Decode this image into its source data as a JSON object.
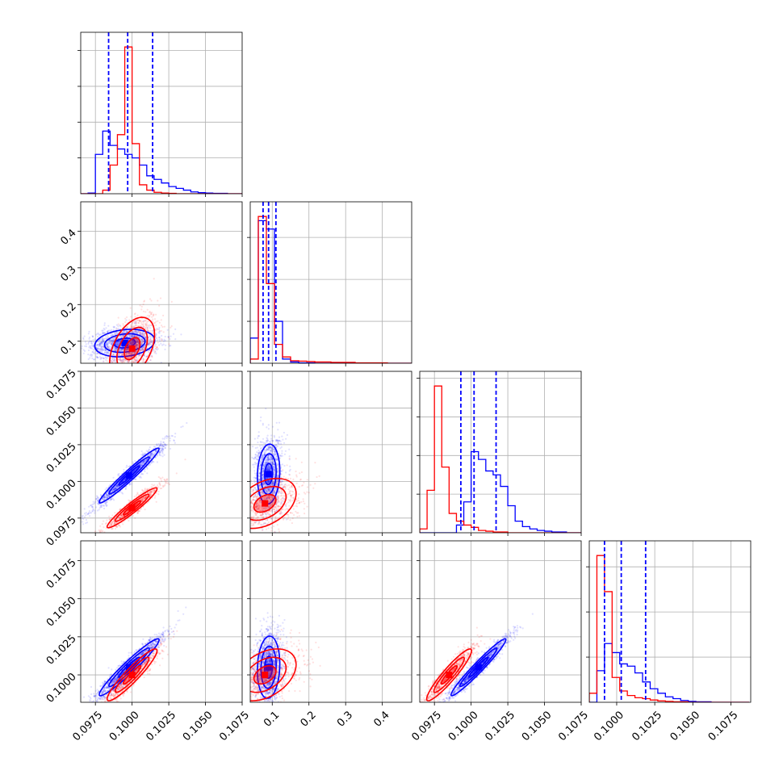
{
  "chart_data": {
    "type": "corner",
    "title": "",
    "grid": true,
    "series": [
      {
        "name": "",
        "color": "#0000ff"
      },
      {
        "name": "",
        "color": "#ff0000"
      }
    ],
    "axes": [
      {
        "range": [
          0.0965,
          0.1075
        ],
        "ticks": [
          0.0975,
          0.1,
          0.1025,
          0.105,
          0.1075
        ],
        "tick_labels": [
          "0.0975",
          "0.1000",
          "0.1025",
          "0.1050",
          "0.1075"
        ]
      },
      {
        "range": [
          0.04,
          0.48
        ],
        "ticks": [
          0.1,
          0.2,
          0.3,
          0.4
        ],
        "tick_labels": [
          "0.1",
          "0.2",
          "0.3",
          "0.4"
        ]
      },
      {
        "range": [
          0.0965,
          0.1075
        ],
        "ticks": [
          0.0975,
          0.1,
          0.1025,
          0.105,
          0.1075
        ],
        "tick_labels": [
          "0.0975",
          "0.1000",
          "0.1025",
          "0.1050",
          "0.1075"
        ]
      },
      {
        "range": [
          0.0982,
          0.1088
        ],
        "ticks": [
          0.1,
          0.1025,
          0.105,
          0.1075
        ],
        "tick_labels": [
          "0.1000",
          "0.1025",
          "0.1050",
          "0.1075"
        ]
      }
    ],
    "quantiles": [
      {
        "color": "#0000ff",
        "values": [
          0.0984,
          0.0997,
          0.1014
        ]
      },
      {
        "color": "#0000ff",
        "values": [
          0.075,
          0.09,
          0.11
        ]
      },
      {
        "color": "#0000ff",
        "values": [
          0.0993,
          0.1002,
          0.1017
        ]
      },
      {
        "color": "#0000ff",
        "values": [
          0.0992,
          0.1003,
          0.1019
        ]
      }
    ],
    "histograms": [
      {
        "bin_edges": [
          0.0965,
          0.097,
          0.0975,
          0.098,
          0.0985,
          0.099,
          0.0995,
          0.1,
          0.1005,
          0.101,
          0.1015,
          0.102,
          0.1025,
          0.103,
          0.1035,
          0.104,
          0.1045,
          0.105,
          0.1055,
          0.106,
          0.1065,
          0.107,
          0.1075
        ],
        "series": [
          {
            "color": "#0000ff",
            "counts": [
              0,
              2,
              110,
              175,
              135,
              125,
              110,
              100,
              80,
              50,
              40,
              30,
              20,
              15,
              10,
              5,
              3,
              2,
              1,
              1,
              0,
              0
            ]
          },
          {
            "color": "#ff0000",
            "counts": [
              0,
              0,
              0,
              10,
              80,
              165,
              410,
              140,
              25,
              10,
              4,
              2,
              1,
              0,
              0,
              0,
              0,
              0,
              0,
              0,
              0,
              0
            ]
          }
        ]
      },
      {
        "bin_edges": [
          0.04,
          0.062,
          0.084,
          0.106,
          0.128,
          0.15,
          0.172,
          0.194,
          0.216,
          0.238,
          0.26,
          0.282,
          0.304,
          0.326,
          0.348,
          0.37,
          0.392,
          0.414,
          0.436,
          0.458,
          0.48
        ],
        "series": [
          {
            "color": "#0000ff",
            "counts": [
              60,
              340,
              320,
              100,
              10,
              3,
              1,
              1,
              0,
              0,
              0,
              0,
              0,
              0,
              0,
              0,
              0,
              0,
              0,
              0
            ]
          },
          {
            "color": "#ff0000",
            "counts": [
              10,
              350,
              190,
              45,
              15,
              6,
              5,
              4,
              3,
              3,
              2,
              2,
              2,
              1,
              1,
              1,
              1,
              0,
              0,
              0
            ]
          }
        ]
      },
      {
        "bin_edges": [
          0.0965,
          0.097,
          0.0975,
          0.098,
          0.0985,
          0.099,
          0.0995,
          0.1,
          0.1005,
          0.101,
          0.1015,
          0.102,
          0.1025,
          0.103,
          0.1035,
          0.104,
          0.1045,
          0.105,
          0.1055,
          0.106,
          0.1065,
          0.107,
          0.1075
        ],
        "series": [
          {
            "color": "#0000ff",
            "counts": [
              0,
              0,
              0,
              0,
              0,
              10,
              40,
              105,
              95,
              80,
              75,
              60,
              35,
              15,
              8,
              5,
              3,
              2,
              1,
              1,
              0,
              0
            ]
          },
          {
            "color": "#ff0000",
            "counts": [
              5,
              55,
              190,
              85,
              25,
              15,
              10,
              7,
              3,
              2,
              1,
              1,
              0,
              0,
              0,
              0,
              0,
              0,
              0,
              0,
              0,
              0
            ]
          }
        ]
      },
      {
        "bin_edges": [
          0.0982,
          0.0987,
          0.0992,
          0.0997,
          0.1002,
          0.1007,
          0.1012,
          0.1017,
          0.1022,
          0.1027,
          0.1032,
          0.1037,
          0.1042,
          0.1047,
          0.1052,
          0.1057,
          0.1062,
          0.1067,
          0.1072,
          0.1077,
          0.1082,
          0.1087
        ],
        "series": [
          {
            "color": "#0000ff",
            "counts": [
              0,
              70,
              130,
              110,
              85,
              80,
              65,
              45,
              30,
              20,
              12,
              8,
              4,
              2,
              1,
              1,
              0,
              0,
              0,
              0,
              0
            ]
          },
          {
            "color": "#ff0000",
            "counts": [
              20,
              325,
              245,
              55,
              25,
              15,
              10,
              8,
              5,
              3,
              2,
              1,
              1,
              0,
              0,
              0,
              0,
              0,
              0,
              0,
              0
            ]
          }
        ]
      }
    ],
    "pairs": [
      {
        "x_axis": 0,
        "y_axis": 1,
        "series": [
          {
            "color": "#0000ff",
            "mean": [
              0.0995,
              0.095
            ],
            "sd": [
              0.0012,
              0.022
            ],
            "corr": 0.2,
            "n": 1400
          },
          {
            "color": "#ff0000",
            "mean": [
              0.1,
              0.08
            ],
            "sd": [
              0.0009,
              0.05
            ],
            "corr": 0.45,
            "n": 900
          }
        ]
      },
      {
        "x_axis": 0,
        "y_axis": 2,
        "series": [
          {
            "color": "#0000ff",
            "mean": [
              0.0998,
              0.1004
            ],
            "sd": [
              0.0012,
              0.0011
            ],
            "corr": 0.97,
            "n": 1400
          },
          {
            "color": "#ff0000",
            "mean": [
              0.1,
              0.0982
            ],
            "sd": [
              0.001,
              0.0008
            ],
            "corr": 0.95,
            "n": 900
          }
        ]
      },
      {
        "x_axis": 1,
        "y_axis": 2,
        "series": [
          {
            "color": "#0000ff",
            "mean": [
              0.09,
              0.1005
            ],
            "sd": [
              0.018,
              0.0012
            ],
            "corr": 0.1,
            "n": 1400
          },
          {
            "color": "#ff0000",
            "mean": [
              0.08,
              0.0985
            ],
            "sd": [
              0.05,
              0.001
            ],
            "corr": 0.4,
            "n": 900
          }
        ]
      },
      {
        "x_axis": 0,
        "y_axis": 3,
        "series": [
          {
            "color": "#0000ff",
            "mean": [
              0.0998,
              0.1005
            ],
            "sd": [
              0.0012,
              0.0011
            ],
            "corr": 0.96,
            "n": 1400
          },
          {
            "color": "#ff0000",
            "mean": [
              0.1,
              0.1
            ],
            "sd": [
              0.001,
              0.001
            ],
            "corr": 0.93,
            "n": 900
          }
        ]
      },
      {
        "x_axis": 1,
        "y_axis": 3,
        "series": [
          {
            "color": "#0000ff",
            "mean": [
              0.09,
              0.1005
            ],
            "sd": [
              0.018,
              0.0012
            ],
            "corr": 0.1,
            "n": 1400
          },
          {
            "color": "#ff0000",
            "mean": [
              0.08,
              0.1
            ],
            "sd": [
              0.05,
              0.001
            ],
            "corr": 0.4,
            "n": 900
          }
        ]
      },
      {
        "x_axis": 2,
        "y_axis": 3,
        "series": [
          {
            "color": "#0000ff",
            "mean": [
              0.1005,
              0.1005
            ],
            "sd": [
              0.0011,
              0.0011
            ],
            "corr": 0.97,
            "n": 1400
          },
          {
            "color": "#ff0000",
            "mean": [
              0.0985,
              0.1
            ],
            "sd": [
              0.0009,
              0.001
            ],
            "corr": 0.93,
            "n": 900
          }
        ]
      }
    ]
  }
}
